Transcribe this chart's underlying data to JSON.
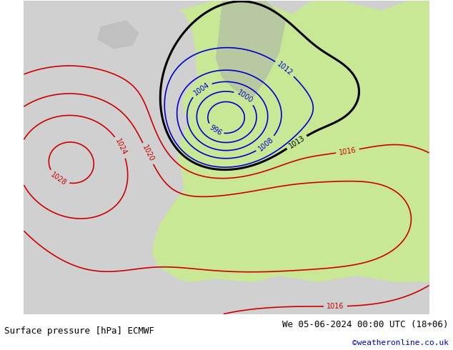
{
  "title_left": "Surface pressure [hPa] ECMWF",
  "title_right": "We 05-06-2024 00:00 UTC (18+06)",
  "copyright": "©weatheronline.co.uk",
  "bg_color_ocean": "#d3d3d3",
  "bg_color_land_green": "#c8e6a0",
  "bg_color_land_gray": "#b0b0b0",
  "bg_color_atlantic": "#c8c8c8",
  "isobar_blue_color": "#0000cc",
  "isobar_red_color": "#cc0000",
  "isobar_black_color": "#000000",
  "footer_bg": "#ffffff",
  "footer_text_color": "#000000",
  "copyright_color": "#0000cc",
  "font_size_labels": 8,
  "font_size_footer": 9
}
